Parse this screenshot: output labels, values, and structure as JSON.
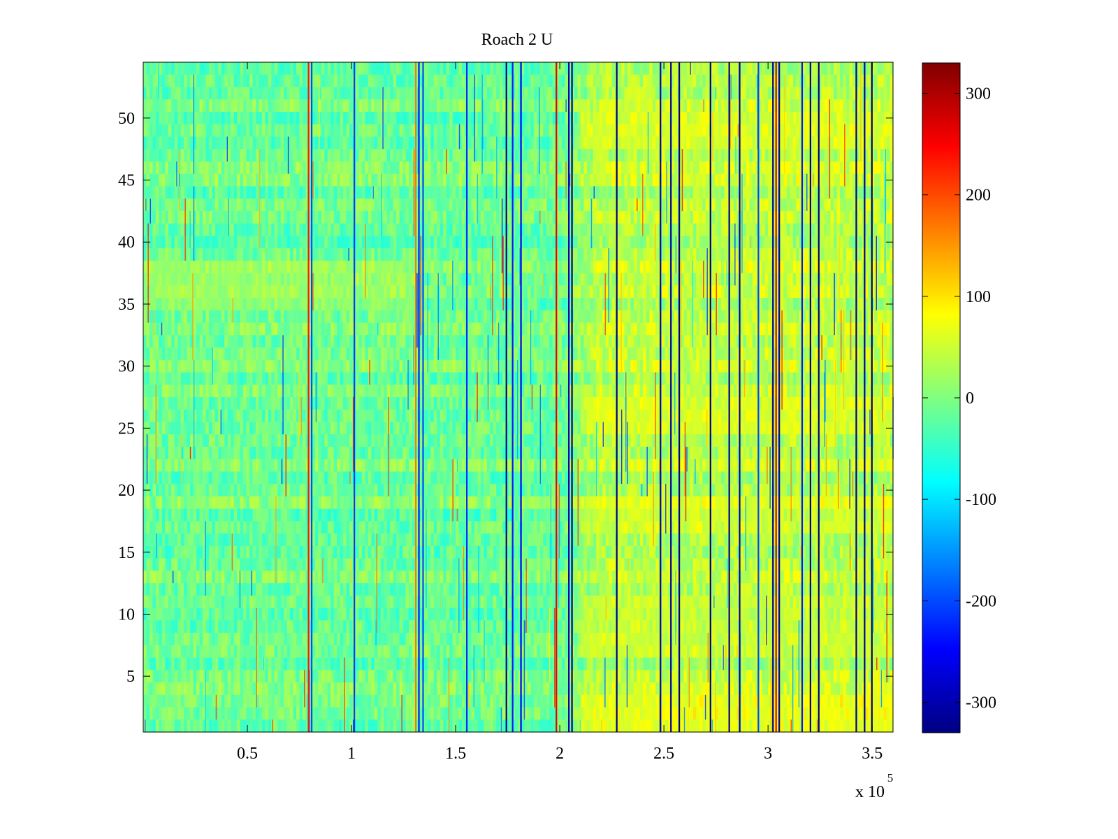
{
  "chart_data": {
    "type": "heatmap",
    "title": "Roach 2 U",
    "xlabel": "",
    "ylabel": "",
    "x_range": [
      0,
      360000
    ],
    "y_range": [
      0.5,
      54.5
    ],
    "x_ticks": [
      50000,
      100000,
      150000,
      200000,
      250000,
      300000,
      350000
    ],
    "x_tick_labels": [
      "0.5",
      "1",
      "1.5",
      "2",
      "2.5",
      "3",
      "3.5"
    ],
    "x_exponent_label": "x 10",
    "x_exponent_power": "5",
    "y_ticks": [
      5,
      10,
      15,
      20,
      25,
      30,
      35,
      40,
      45,
      50
    ],
    "y_tick_labels": [
      "5",
      "10",
      "15",
      "20",
      "25",
      "30",
      "35",
      "40",
      "45",
      "50"
    ],
    "rows": 54,
    "colormap": "jet",
    "color_range": [
      -330,
      330
    ],
    "colorbar_ticks": [
      300,
      200,
      100,
      0,
      -100,
      -200,
      -300
    ],
    "colorbar_tick_labels": [
      "300",
      "200",
      "100",
      "0",
      "-100",
      "-200",
      "-300"
    ],
    "typical_value_early": -10,
    "typical_value_late": 40,
    "warm_row_bands": [
      {
        "rows": [
          52,
          54
        ],
        "x_range": [
          210000,
          360000
        ],
        "value": 95
      },
      {
        "rows": [
          44,
          48
        ],
        "x_range": [
          210000,
          360000
        ],
        "value": 60
      },
      {
        "rows": [
          36,
          38
        ],
        "x_range": [
          210000,
          360000
        ],
        "value": 70
      },
      {
        "rows": [
          28,
          30
        ],
        "x_range": [
          210000,
          360000
        ],
        "value": 80
      },
      {
        "rows": [
          5,
          7
        ],
        "x_range": [
          210000,
          360000
        ],
        "value": 85
      },
      {
        "rows": [
          17,
          20
        ],
        "x_range": [
          0,
          130000
        ],
        "value": 35
      }
    ],
    "spikes": [
      {
        "x": 79000,
        "value": 230
      },
      {
        "x": 80500,
        "value": -200
      },
      {
        "x": 101000,
        "value": -210
      },
      {
        "x": 130500,
        "value": 170
      },
      {
        "x": 132000,
        "value": -230
      },
      {
        "x": 134000,
        "value": -200
      },
      {
        "x": 155000,
        "value": -220
      },
      {
        "x": 174000,
        "value": -320
      },
      {
        "x": 177000,
        "value": -230
      },
      {
        "x": 181000,
        "value": -250
      },
      {
        "x": 198000,
        "value": 260
      },
      {
        "x": 204000,
        "value": -300
      },
      {
        "x": 205500,
        "value": -320
      },
      {
        "x": 227000,
        "value": -330
      },
      {
        "x": 248000,
        "value": -300
      },
      {
        "x": 253000,
        "value": -310
      },
      {
        "x": 257000,
        "value": -320
      },
      {
        "x": 272000,
        "value": -330
      },
      {
        "x": 281000,
        "value": -320
      },
      {
        "x": 286000,
        "value": -300
      },
      {
        "x": 295000,
        "value": -200
      },
      {
        "x": 302000,
        "value": -320
      },
      {
        "x": 303500,
        "value": 260
      },
      {
        "x": 305000,
        "value": -310
      },
      {
        "x": 316000,
        "value": -230
      },
      {
        "x": 320000,
        "value": -320
      },
      {
        "x": 324000,
        "value": -330
      },
      {
        "x": 342000,
        "value": -320
      },
      {
        "x": 346000,
        "value": -310
      },
      {
        "x": 349500,
        "value": -330
      }
    ]
  }
}
